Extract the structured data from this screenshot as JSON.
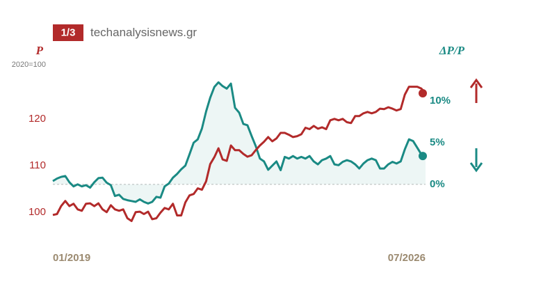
{
  "source": {
    "badge": "1/3",
    "site": "techanalysisnews.gr"
  },
  "chart_data": {
    "type": "line",
    "y_label": "P",
    "y_sublabel": "2020=100",
    "y2_label": "ΔP/P",
    "categories": [
      "01/2019",
      null,
      null,
      null,
      null,
      null,
      null,
      null,
      null,
      null,
      null,
      null,
      null,
      null,
      null,
      null,
      null,
      null,
      null,
      null,
      null,
      null,
      null,
      null,
      null,
      null,
      null,
      null,
      null,
      null,
      null,
      null,
      null,
      null,
      null,
      null,
      null,
      null,
      null,
      null,
      null,
      null,
      null,
      null,
      null,
      null,
      null,
      null,
      null,
      null,
      null,
      null,
      null,
      null,
      null,
      null,
      null,
      null,
      null,
      null,
      null,
      null,
      null,
      null,
      null,
      null,
      null,
      null,
      null,
      null,
      null,
      null,
      null,
      null,
      null,
      null,
      null,
      null,
      null,
      null,
      null,
      null,
      null,
      null,
      null,
      null,
      null,
      null,
      null,
      null,
      "07/2026"
    ],
    "series": [
      {
        "name": "P",
        "color": "#b22a2a",
        "axis": "y",
        "values": [
          99.4,
          99.6,
          101.3,
          102.4,
          101.3,
          101.8,
          100.6,
          100.3,
          101.8,
          101.9,
          101.3,
          101.9,
          100.6,
          100.0,
          101.5,
          100.6,
          100.3,
          100.6,
          98.7,
          98.1,
          100.0,
          100.1,
          99.6,
          100.1,
          98.5,
          98.7,
          99.9,
          100.9,
          100.6,
          101.8,
          99.3,
          99.3,
          102.1,
          103.6,
          103.9,
          105.1,
          104.8,
          106.6,
          110.3,
          111.8,
          113.7,
          111.3,
          111.0,
          114.3,
          113.3,
          113.3,
          112.5,
          111.9,
          112.2,
          113.3,
          114.3,
          115.1,
          116.1,
          115.2,
          115.8,
          117.0,
          117.0,
          116.6,
          116.1,
          116.3,
          116.7,
          118.1,
          117.8,
          118.5,
          117.9,
          118.2,
          117.8,
          119.7,
          120.0,
          119.7,
          120.0,
          119.3,
          119.1,
          120.6,
          120.6,
          121.2,
          121.5,
          121.2,
          121.5,
          122.2,
          122.1,
          122.5,
          122.2,
          121.8,
          122.1,
          125.2,
          126.9,
          126.9,
          126.9,
          126.5,
          125.5
        ]
      },
      {
        "name": "ΔP/P",
        "color": "#1a8a84",
        "axis": "y2",
        "area": true,
        "values": [
          0.4,
          0.7,
          0.9,
          1.0,
          0.25,
          -0.25,
          0,
          -0.25,
          -0.1,
          -0.4,
          0.25,
          0.75,
          0.8,
          0.2,
          -0.1,
          -1.4,
          -1.25,
          -1.75,
          -1.9,
          -2.0,
          -2.1,
          -1.8,
          -2.1,
          -2.3,
          -2.1,
          -1.5,
          -1.6,
          -0.25,
          0.1,
          0.8,
          1.25,
          1.8,
          2.25,
          3.6,
          5.0,
          5.4,
          6.7,
          8.75,
          10.4,
          11.7,
          12.25,
          11.8,
          11.5,
          12.1,
          9.2,
          8.6,
          7.25,
          7.1,
          5.8,
          4.6,
          3.1,
          2.75,
          1.75,
          2.25,
          2.75,
          1.7,
          3.3,
          3.1,
          3.4,
          3.1,
          3.3,
          3.1,
          3.4,
          2.75,
          2.4,
          2.9,
          3.1,
          3.4,
          2.4,
          2.3,
          2.7,
          2.9,
          2.75,
          2.4,
          1.9,
          2.5,
          2.9,
          3.1,
          2.9,
          1.9,
          1.9,
          2.4,
          2.7,
          2.5,
          2.75,
          4.2,
          5.4,
          5.2,
          4.4,
          3.6,
          3.4
        ]
      }
    ],
    "ylim": [
      94,
      129
    ],
    "yticks": [
      100,
      110,
      120
    ],
    "y2lim": [
      -6.7,
      12.9
    ],
    "y2ticks": [
      {
        "value": 0,
        "label": "0%"
      },
      {
        "value": 5,
        "label": "5%"
      },
      {
        "value": 10,
        "label": "10%"
      }
    ],
    "end_markers": true
  }
}
